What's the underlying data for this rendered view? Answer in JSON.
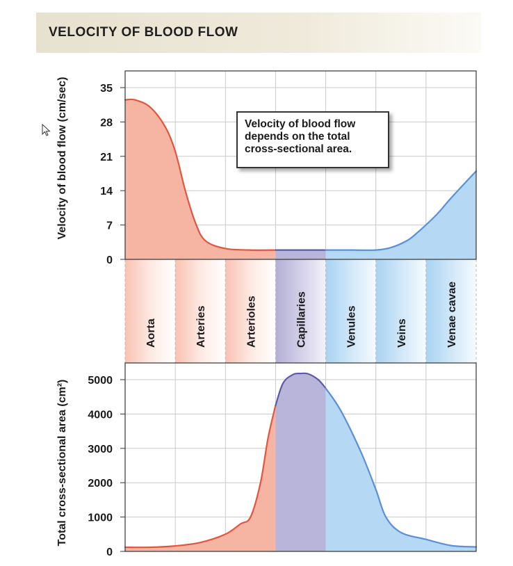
{
  "title": "VELOCITY OF BLOOD FLOW",
  "annotation": {
    "lines": [
      "Velocity of blood flow",
      "depends on the total",
      "cross-sectional area."
    ]
  },
  "colors": {
    "arterial_fill": "#f6b5a3",
    "arterial_line": "#e2553f",
    "capillary_fill": "#b9b4d9",
    "capillary_line": "#5b5aa8",
    "venous_fill": "#b5d9f4",
    "venous_line": "#5b8fd8",
    "grid": "#c9c9c9"
  },
  "chart_data": {
    "categories": [
      "Aorta",
      "Arteries",
      "Arterioles",
      "Capillaries",
      "Venules",
      "Veins",
      "Venae cavae"
    ],
    "grid": true,
    "charts": [
      {
        "id": "velocity",
        "type": "area",
        "ylabel": "Velocity of blood flow (cm/sec)",
        "ylim": [
          0,
          35
        ],
        "yticks": [
          0,
          7,
          14,
          21,
          28,
          35
        ],
        "x": [
          0,
          0.2,
          0.5,
          0.8,
          1.0,
          1.2,
          1.4,
          1.6,
          2.0,
          2.5,
          3.0,
          3.5,
          4.0,
          4.5,
          5.0,
          5.3,
          5.6,
          5.8,
          6.2,
          6.5,
          7.0
        ],
        "values": [
          32.5,
          32.5,
          31,
          27,
          22,
          14,
          7.5,
          3.8,
          2.2,
          1.9,
          1.9,
          1.9,
          1.9,
          1.9,
          1.9,
          2.4,
          3.7,
          5.2,
          9.0,
          12.5,
          18.0
        ]
      },
      {
        "id": "area",
        "type": "area",
        "ylabel": "Total cross-sectional area (cm²)",
        "ylim": [
          0,
          5000
        ],
        "yticks": [
          0,
          1000,
          2000,
          3000,
          4000,
          5000
        ],
        "x": [
          0,
          0.5,
          1.0,
          1.5,
          2.0,
          2.3,
          2.5,
          2.7,
          2.85,
          3.0,
          3.15,
          3.35,
          3.5,
          3.65,
          3.85,
          4.0,
          4.3,
          4.7,
          5.0,
          5.2,
          5.5,
          6.0,
          6.5,
          7.0
        ],
        "values": [
          120,
          120,
          160,
          260,
          500,
          800,
          1000,
          2000,
          3300,
          4250,
          4900,
          5150,
          5180,
          5170,
          5000,
          4750,
          4100,
          2900,
          1800,
          1000,
          550,
          350,
          170,
          130
        ]
      }
    ]
  }
}
